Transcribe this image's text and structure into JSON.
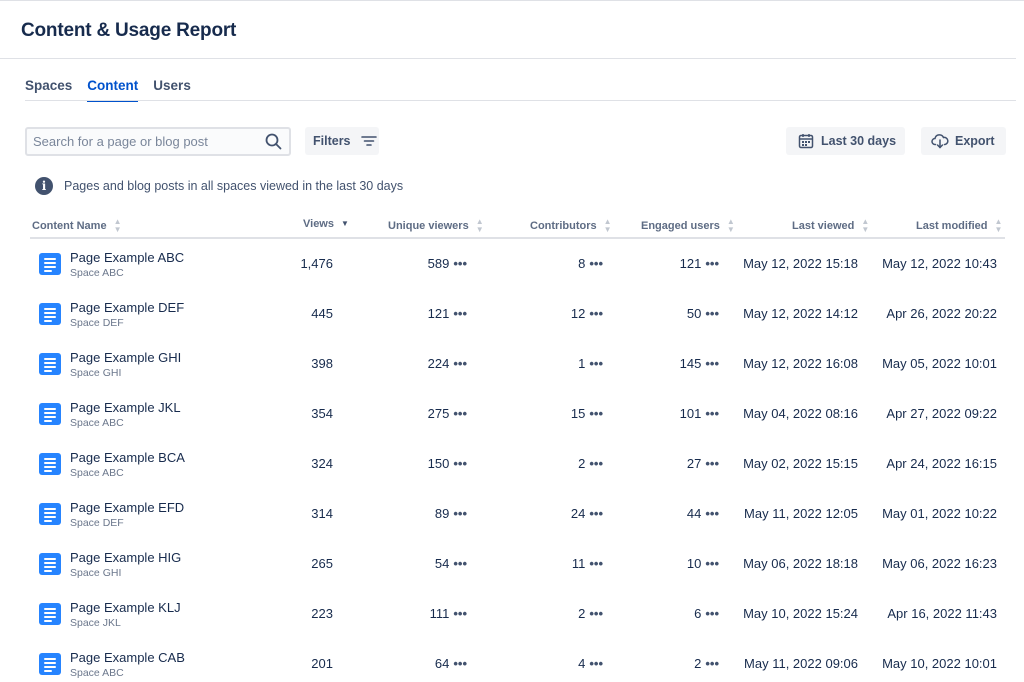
{
  "title": "Content & Usage Report",
  "tabs": [
    {
      "label": "Spaces",
      "active": false
    },
    {
      "label": "Content",
      "active": true
    },
    {
      "label": "Users",
      "active": false
    }
  ],
  "search": {
    "placeholder": "Search for a page or blog post",
    "icon": "search-icon"
  },
  "filters_label": "Filters",
  "date_range_label": "Last 30 days",
  "export_label": "Export",
  "info_text": "Pages and blog posts in all spaces viewed in the last 30 days",
  "colors": {
    "accent": "#0052cc",
    "page_icon": "#2684ff",
    "text": "#172b4d",
    "muted": "#6b778c"
  },
  "columns": {
    "name": "Content Name",
    "views": "Views",
    "unique": "Unique viewers",
    "contributors": "Contributors",
    "engaged": "Engaged users",
    "last_viewed": "Last viewed",
    "last_modified": "Last modified"
  },
  "rows": [
    {
      "name": "Page Example ABC",
      "space": "Space ABC",
      "views": "1,476",
      "unique": "589",
      "contributors": "8",
      "engaged": "121",
      "last_viewed": "May 12, 2022 15:18",
      "last_modified": "May 12, 2022 10:43"
    },
    {
      "name": "Page Example DEF",
      "space": "Space DEF",
      "views": "445",
      "unique": "121",
      "contributors": "12",
      "engaged": "50",
      "last_viewed": "May 12, 2022 14:12",
      "last_modified": "Apr 26, 2022 20:22"
    },
    {
      "name": "Page Example GHI",
      "space": "Space GHI",
      "views": "398",
      "unique": "224",
      "contributors": "1",
      "engaged": "145",
      "last_viewed": "May 12, 2022 16:08",
      "last_modified": "May 05, 2022 10:01"
    },
    {
      "name": "Page Example JKL",
      "space": "Space ABC",
      "views": "354",
      "unique": "275",
      "contributors": "15",
      "engaged": "101",
      "last_viewed": "May 04, 2022 08:16",
      "last_modified": "Apr 27, 2022 09:22"
    },
    {
      "name": "Page Example BCA",
      "space": "Space ABC",
      "views": "324",
      "unique": "150",
      "contributors": "2",
      "engaged": "27",
      "last_viewed": "May 02, 2022 15:15",
      "last_modified": "Apr 24, 2022 16:15"
    },
    {
      "name": "Page Example EFD",
      "space": "Space DEF",
      "views": "314",
      "unique": "89",
      "contributors": "24",
      "engaged": "44",
      "last_viewed": "May 11, 2022 12:05",
      "last_modified": "May 01, 2022 10:22"
    },
    {
      "name": "Page Example HIG",
      "space": "Space GHI",
      "views": "265",
      "unique": "54",
      "contributors": "11",
      "engaged": "10",
      "last_viewed": "May 06, 2022 18:18",
      "last_modified": "May 06, 2022 16:23"
    },
    {
      "name": "Page Example KLJ",
      "space": "Space JKL",
      "views": "223",
      "unique": "111",
      "contributors": "2",
      "engaged": "6",
      "last_viewed": "May 10, 2022 15:24",
      "last_modified": "Apr 16, 2022 11:43"
    },
    {
      "name": "Page Example CAB",
      "space": "Space ABC",
      "views": "201",
      "unique": "64",
      "contributors": "4",
      "engaged": "2",
      "last_viewed": "May 11, 2022 09:06",
      "last_modified": "May 10, 2022 10:01"
    }
  ]
}
